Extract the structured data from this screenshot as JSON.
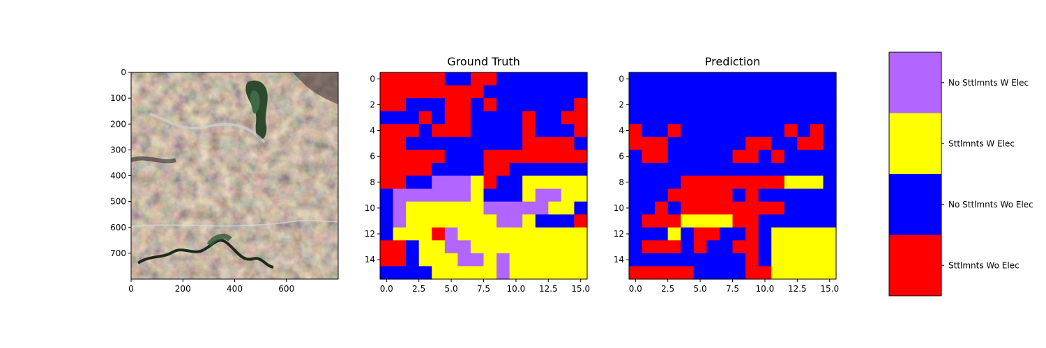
{
  "colors": {
    "sttlmnts_wo_elec": "#ff0000",
    "no_sttlmnts_wo_elec": "#0000ff",
    "sttlmnts_w_elec": "#ffff00",
    "no_sttlmnts_w_elec": "#b266ff"
  },
  "chart_data": [
    {
      "type": "image",
      "content": "satellite RGB image",
      "xlim": [
        0,
        800
      ],
      "ylim": [
        800,
        0
      ],
      "x_ticks": [
        "0",
        "200",
        "400",
        "600"
      ],
      "y_ticks": [
        "0",
        "100",
        "200",
        "300",
        "400",
        "500",
        "600",
        "700"
      ]
    },
    {
      "type": "heatmap",
      "title": "Ground Truth",
      "x_ticks": [
        "0.0",
        "2.5",
        "5.0",
        "7.5",
        "10.0",
        "12.5",
        "15.0"
      ],
      "y_ticks": [
        "0",
        "2",
        "4",
        "6",
        "8",
        "10",
        "12",
        "14"
      ],
      "grid": [
        "RRRRRBBRRBBBBBBB",
        "RRRRRRRRBBBBBBBB",
        "RRBBBRRBRBBBBBBR",
        "BBBRBRRBBBBRBBRR",
        "RRRBRRRBBBBRBBBR",
        "RRBBBBBBBBBRRRRB",
        "RRRRRBBBRRRRRRRR",
        "RRRRBBBBRRBBBBBB",
        "RRBBPPPYRBBYYYYY",
        "BPPPPPPYBBBYPPYY",
        "BPYYYYYYPPPPPYYB",
        "BPYYYYYYYPPYBBBR",
        "BYYYRPYYYYYYYYYY",
        "RRBYYPPYYYYYYYYY",
        "RRBYYYPPYPYYYYYY",
        "BBBBYYYYYPYYYYYY"
      ]
    },
    {
      "type": "heatmap",
      "title": "Prediction",
      "x_ticks": [
        "0.0",
        "2.5",
        "5.0",
        "7.5",
        "10.0",
        "12.5",
        "15.0"
      ],
      "y_ticks": [
        "0",
        "2",
        "4",
        "6",
        "8",
        "10",
        "12",
        "14"
      ],
      "grid": [
        "BBBBBBBBBBBBBBBB",
        "BBBBBBBBBBBBBBBB",
        "BBBBBBBBBBBBBBBB",
        "BBBBBBBBBBBBBBBB",
        "RBBRBBBBBBBBRBRB",
        "RRRBBBBBBRRBBRRB",
        "BRRBBBBBRRBRBBBB",
        "BBBBBBBBBBBBBBBB",
        "BBBBRRRRRRRRYYYB",
        "BBBRRRRRBRBBBBBB",
        "BBRBRRRRRRRRBBBB",
        "BRRRYYYYRRBBBBBB",
        "BBBYBRRBBRBYYYYY",
        "BRRRBRBBRRBYYYYY",
        "BBBBBBBBBRBYYYYY",
        "RRRRRBBBBRRYYYYY"
      ]
    }
  ],
  "legend": [
    {
      "label": "No Sttlmnts W Elec",
      "color": "#b266ff"
    },
    {
      "label": "Sttlmnts W Elec",
      "color": "#ffff00"
    },
    {
      "label": "No Sttlmnts Wo Elec",
      "color": "#0000ff"
    },
    {
      "label": "Sttlmnts Wo Elec",
      "color": "#ff0000"
    }
  ]
}
